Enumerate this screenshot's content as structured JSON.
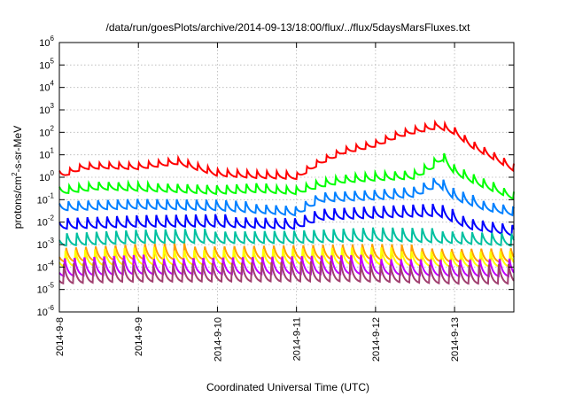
{
  "chart_data": {
    "type": "line",
    "title": "/data/run/goesPlots/archive/2014-09-13/18:00/flux/../flux/5daysMarsFluxes.txt",
    "xlabel": "Coordinated Universal Time (UTC)",
    "ylabel_parts": [
      "protons/cm",
      "2",
      "-s-sr-MeV"
    ],
    "ylabel": "protons/cm2-s-sr-MeV",
    "y_scale": "log",
    "ylim": [
      1e-06,
      1000000.0
    ],
    "y_ticks": [
      {
        "base": "10",
        "exp": "-6",
        "value": 1e-06
      },
      {
        "base": "10",
        "exp": "-5",
        "value": 1e-05
      },
      {
        "base": "10",
        "exp": "-4",
        "value": 0.0001
      },
      {
        "base": "10",
        "exp": "-3",
        "value": 0.001
      },
      {
        "base": "10",
        "exp": "-2",
        "value": 0.01
      },
      {
        "base": "10",
        "exp": "-1",
        "value": 0.1
      },
      {
        "base": "10",
        "exp": "0",
        "value": 1
      },
      {
        "base": "10",
        "exp": "1",
        "value": 10.0
      },
      {
        "base": "10",
        "exp": "2",
        "value": 100.0
      },
      {
        "base": "10",
        "exp": "3",
        "value": 1000.0
      },
      {
        "base": "10",
        "exp": "4",
        "value": 10000.0
      },
      {
        "base": "10",
        "exp": "5",
        "value": 100000.0
      },
      {
        "base": "10",
        "exp": "6",
        "value": 1000000.0
      }
    ],
    "x_range_days": [
      0,
      5.75
    ],
    "x_ticks": [
      {
        "label": "2014-9-8",
        "day": 0
      },
      {
        "label": "2014-9-9",
        "day": 1
      },
      {
        "label": "2014-9-10",
        "day": 2
      },
      {
        "label": "2014-9-11",
        "day": 3
      },
      {
        "label": "2014-9-12",
        "day": 4
      },
      {
        "label": "2014-9-13",
        "day": 5
      }
    ],
    "grid": true,
    "legend": "none",
    "series": [
      {
        "color": "#ff0000",
        "samples": [
          [
            0,
            1.2
          ],
          [
            0.3,
            3.0
          ],
          [
            0.6,
            3.2
          ],
          [
            1.0,
            3.0
          ],
          [
            1.5,
            5.0
          ],
          [
            2.0,
            1.5
          ],
          [
            2.5,
            1.2
          ],
          [
            3.0,
            1.1
          ],
          [
            3.3,
            5.0
          ],
          [
            3.6,
            15
          ],
          [
            4.0,
            30
          ],
          [
            4.3,
            80
          ],
          [
            4.5,
            120
          ],
          [
            4.8,
            200
          ],
          [
            5.0,
            110
          ],
          [
            5.2,
            30
          ],
          [
            5.5,
            8
          ],
          [
            5.75,
            2.5
          ]
        ]
      },
      {
        "color": "#00ff00",
        "samples": [
          [
            0,
            0.25
          ],
          [
            0.5,
            0.4
          ],
          [
            1.0,
            0.35
          ],
          [
            1.5,
            0.3
          ],
          [
            2.0,
            0.25
          ],
          [
            2.5,
            0.3
          ],
          [
            3.0,
            0.25
          ],
          [
            3.3,
            0.5
          ],
          [
            3.6,
            0.8
          ],
          [
            4.0,
            1.0
          ],
          [
            4.5,
            1.2
          ],
          [
            4.7,
            3.0
          ],
          [
            4.85,
            8
          ],
          [
            5.0,
            2.0
          ],
          [
            5.3,
            0.6
          ],
          [
            5.75,
            0.15
          ]
        ]
      },
      {
        "color": "#0080ff",
        "samples": [
          [
            0,
            0.05
          ],
          [
            1.0,
            0.06
          ],
          [
            2.0,
            0.05
          ],
          [
            3.0,
            0.03
          ],
          [
            3.3,
            0.12
          ],
          [
            4.0,
            0.15
          ],
          [
            4.5,
            0.2
          ],
          [
            4.8,
            0.6
          ],
          [
            5.0,
            0.15
          ],
          [
            5.4,
            0.05
          ],
          [
            5.75,
            0.03
          ]
        ]
      },
      {
        "color": "#0000ff",
        "samples": [
          [
            0,
            0.008
          ],
          [
            1.0,
            0.01
          ],
          [
            2.0,
            0.01
          ],
          [
            3.0,
            0.008
          ],
          [
            3.3,
            0.02
          ],
          [
            4.0,
            0.025
          ],
          [
            4.8,
            0.03
          ],
          [
            5.2,
            0.008
          ],
          [
            5.75,
            0.004
          ]
        ]
      },
      {
        "color": "#00c0a0",
        "samples": [
          [
            0,
            0.0015
          ],
          [
            1.0,
            0.002
          ],
          [
            2.0,
            0.002
          ],
          [
            3.0,
            0.002
          ],
          [
            4.0,
            0.0025
          ],
          [
            5.0,
            0.002
          ],
          [
            5.75,
            0.0015
          ]
        ]
      },
      {
        "color": "#ff9c00",
        "samples": [
          [
            0,
            0.0003
          ],
          [
            1.0,
            0.0004
          ],
          [
            2.0,
            0.0004
          ],
          [
            3.0,
            0.0004
          ],
          [
            4.0,
            0.0004
          ],
          [
            5.0,
            0.0003
          ],
          [
            5.75,
            0.0003
          ]
        ]
      },
      {
        "color": "#ffff00",
        "samples": [
          [
            0,
            0.0002
          ],
          [
            1.0,
            0.00025
          ],
          [
            2.0,
            0.00025
          ],
          [
            3.0,
            0.00025
          ],
          [
            4.0,
            0.00025
          ],
          [
            5.0,
            0.0002
          ],
          [
            5.75,
            0.0002
          ]
        ]
      },
      {
        "color": "#c000ff",
        "samples": [
          [
            0,
            8e-05
          ],
          [
            1.0,
            0.0001
          ],
          [
            2.0,
            0.0001
          ],
          [
            3.0,
            0.0001
          ],
          [
            4.0,
            0.0001
          ],
          [
            5.0,
            8e-05
          ],
          [
            5.75,
            8e-05
          ]
        ]
      },
      {
        "color": "#a04070",
        "samples": [
          [
            0,
            4e-05
          ],
          [
            1.0,
            5e-05
          ],
          [
            2.0,
            5e-05
          ],
          [
            3.0,
            5e-05
          ],
          [
            4.0,
            5e-05
          ],
          [
            5.0,
            4e-05
          ],
          [
            5.75,
            4e-05
          ]
        ]
      }
    ]
  }
}
